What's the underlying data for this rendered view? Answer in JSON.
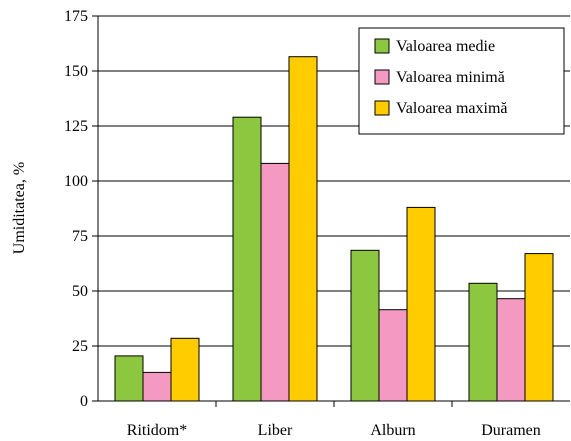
{
  "chart_data": {
    "type": "bar",
    "categories": [
      "Ritidom*",
      "Liber",
      "Alburn",
      "Duramen"
    ],
    "series": [
      {
        "name": "Valoarea medie",
        "values": [
          20.5,
          129,
          68.5,
          53.5
        ],
        "color": "#8dc63f"
      },
      {
        "name": "Valoarea minimă",
        "values": [
          13,
          108,
          41.5,
          46.5
        ],
        "color": "#f49ac2"
      },
      {
        "name": "Valoarea maximă",
        "values": [
          28.5,
          156.5,
          88,
          67
        ],
        "color": "#ffcc00"
      }
    ],
    "ylabel": "Umiditatea, %",
    "ylim": [
      0,
      175
    ],
    "yticks": [
      0,
      25,
      50,
      75,
      100,
      125,
      150,
      175
    ],
    "grid": true,
    "legend": "top-right"
  }
}
